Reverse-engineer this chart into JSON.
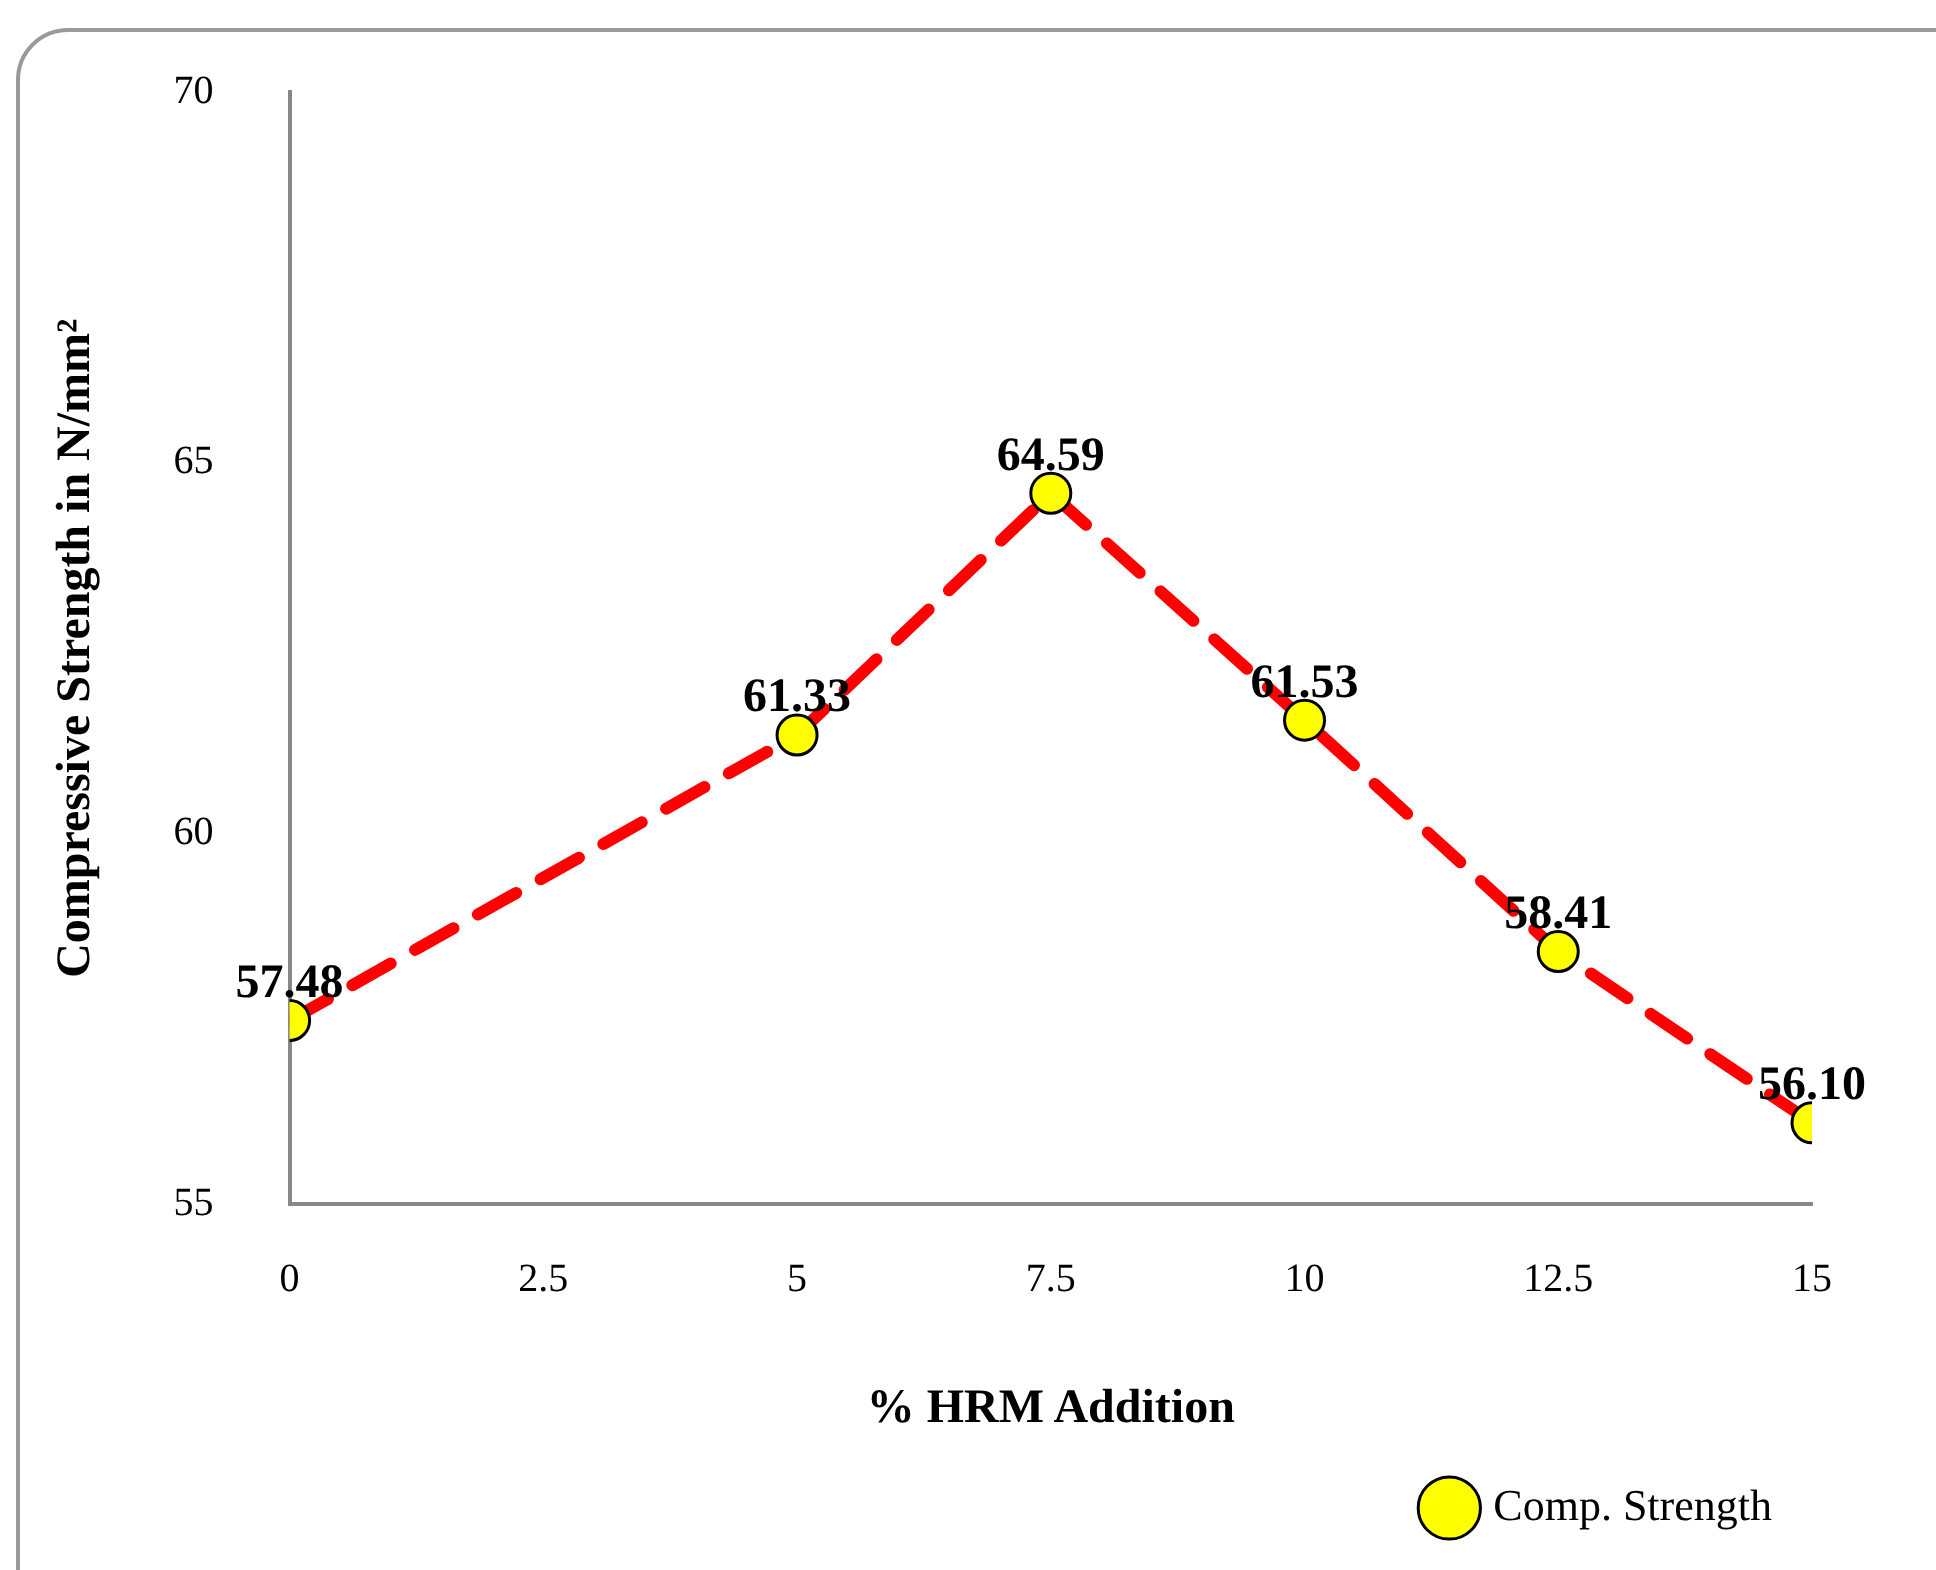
{
  "chart_data": {
    "type": "line",
    "xlabel": "% HRM Addition",
    "ylabel": "Compressive Strength in N/mm²",
    "x": [
      0,
      5,
      7.5,
      10,
      12.5,
      15
    ],
    "series": [
      {
        "name": "Comp. Strength",
        "color": "#ff0000",
        "values": [
          57.48,
          61.33,
          64.59,
          61.53,
          58.41,
          56.1
        ],
        "value_labels": [
          "57.48",
          "61.33",
          "64.59",
          "61.53",
          "58.41",
          "56.10"
        ]
      }
    ],
    "xlim": [
      0,
      15
    ],
    "xticks": [
      0,
      2.5,
      5,
      7.5,
      10,
      12.5,
      15
    ],
    "ylim": [
      55,
      70
    ],
    "yticks": [
      55,
      60,
      65,
      70
    ],
    "grid": false,
    "legend": "bottom right",
    "marker": "circle",
    "line_style": "dashed"
  }
}
